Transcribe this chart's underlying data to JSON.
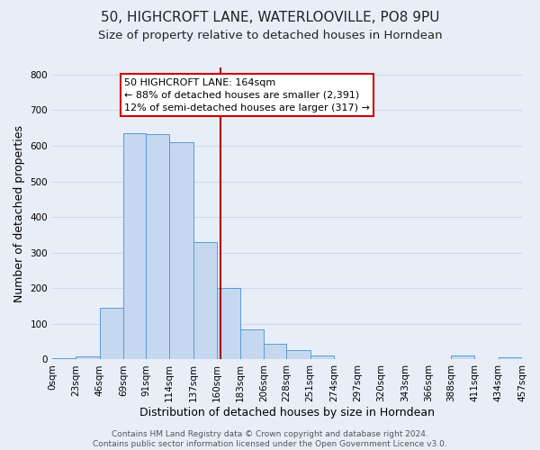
{
  "title": "50, HIGHCROFT LANE, WATERLOOVILLE, PO8 9PU",
  "subtitle": "Size of property relative to detached houses in Horndean",
  "xlabel": "Distribution of detached houses by size in Horndean",
  "ylabel": "Number of detached properties",
  "bar_color": "#c5d8f0",
  "bar_edge_color": "#5b9bd5",
  "background_color": "#e8eef8",
  "grid_color": "#d0d8e8",
  "bin_edges": [
    0,
    23,
    46,
    69,
    91,
    114,
    137,
    160,
    183,
    206,
    228,
    251,
    274,
    297,
    320,
    343,
    366,
    388,
    411,
    434,
    457
  ],
  "bar_heights": [
    4,
    8,
    145,
    635,
    632,
    610,
    330,
    200,
    85,
    45,
    27,
    12,
    0,
    0,
    0,
    0,
    0,
    12,
    0,
    5
  ],
  "bin_labels": [
    "0sqm",
    "23sqm",
    "46sqm",
    "69sqm",
    "91sqm",
    "114sqm",
    "137sqm",
    "160sqm",
    "183sqm",
    "206sqm",
    "228sqm",
    "251sqm",
    "274sqm",
    "297sqm",
    "320sqm",
    "343sqm",
    "366sqm",
    "388sqm",
    "411sqm",
    "434sqm",
    "457sqm"
  ],
  "property_size": 164,
  "vline_color": "#aa0000",
  "annotation_title": "50 HIGHCROFT LANE: 164sqm",
  "annotation_line1": "← 88% of detached houses are smaller (2,391)",
  "annotation_line2": "12% of semi-detached houses are larger (317) →",
  "annotation_box_color": "#ffffff",
  "annotation_box_edge_color": "#cc0000",
  "ylim": [
    0,
    820
  ],
  "yticks": [
    0,
    100,
    200,
    300,
    400,
    500,
    600,
    700,
    800
  ],
  "footer_line1": "Contains HM Land Registry data © Crown copyright and database right 2024.",
  "footer_line2": "Contains public sector information licensed under the Open Government Licence v3.0.",
  "title_fontsize": 11,
  "subtitle_fontsize": 9.5,
  "xlabel_fontsize": 9,
  "ylabel_fontsize": 9,
  "tick_fontsize": 7.5,
  "footer_fontsize": 6.5,
  "ann_fontsize": 8
}
